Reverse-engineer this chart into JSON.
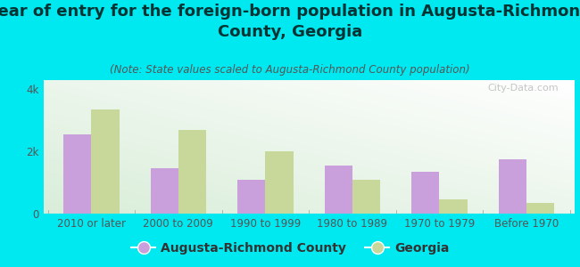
{
  "title": "Year of entry for the foreign-born population in Augusta-Richmond\nCounty, Georgia",
  "subtitle": "(Note: State values scaled to Augusta-Richmond County population)",
  "categories": [
    "2010 or later",
    "2000 to 2009",
    "1990 to 1999",
    "1980 to 1989",
    "1970 to 1979",
    "Before 1970"
  ],
  "county_values": [
    2550,
    1450,
    1100,
    1550,
    1350,
    1750
  ],
  "state_values": [
    3350,
    2700,
    2000,
    1100,
    450,
    350
  ],
  "county_color": "#c9a0dc",
  "state_color": "#c8d89a",
  "background_color": "#00e8f0",
  "plot_bg_top": "#f5fbf5",
  "plot_bg_bottom": "#d8edd8",
  "ylabel_ticks": [
    "0",
    "2k",
    "4k"
  ],
  "ytick_values": [
    0,
    2000,
    4000
  ],
  "ylim": [
    0,
    4300
  ],
  "watermark": "City-Data.com",
  "legend_county": "Augusta-Richmond County",
  "legend_state": "Georgia",
  "title_fontsize": 13,
  "subtitle_fontsize": 8.5,
  "tick_fontsize": 8.5,
  "legend_fontsize": 10,
  "title_color": "#003333",
  "subtitle_color": "#555555",
  "tick_color": "#555555"
}
